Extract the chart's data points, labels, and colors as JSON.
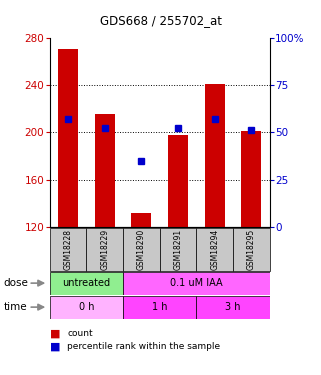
{
  "title": "GDS668 / 255702_at",
  "samples": [
    "GSM18228",
    "GSM18229",
    "GSM18290",
    "GSM18291",
    "GSM18294",
    "GSM18295"
  ],
  "bar_values": [
    270,
    215,
    132,
    198,
    241,
    201
  ],
  "percentile_values": [
    57,
    52,
    35,
    52,
    57,
    51
  ],
  "ylim_left": [
    120,
    280
  ],
  "ylim_right": [
    0,
    100
  ],
  "yticks_left": [
    120,
    160,
    200,
    240,
    280
  ],
  "yticks_right": [
    0,
    25,
    50,
    75,
    100
  ],
  "bar_color": "#cc0000",
  "dot_color": "#0000cc",
  "bar_width": 0.55,
  "bg_color": "#ffffff",
  "left_tick_color": "#cc0000",
  "right_tick_color": "#0000cc",
  "sample_bg": "#c8c8c8",
  "dose_untreated_color": "#90ee90",
  "dose_iaa_color": "#ff66ff",
  "time_0h_color": "#ffb3ff",
  "time_1h_color": "#ff44ff",
  "time_3h_color": "#ff44ff",
  "grid_dotted_color": "#000000"
}
